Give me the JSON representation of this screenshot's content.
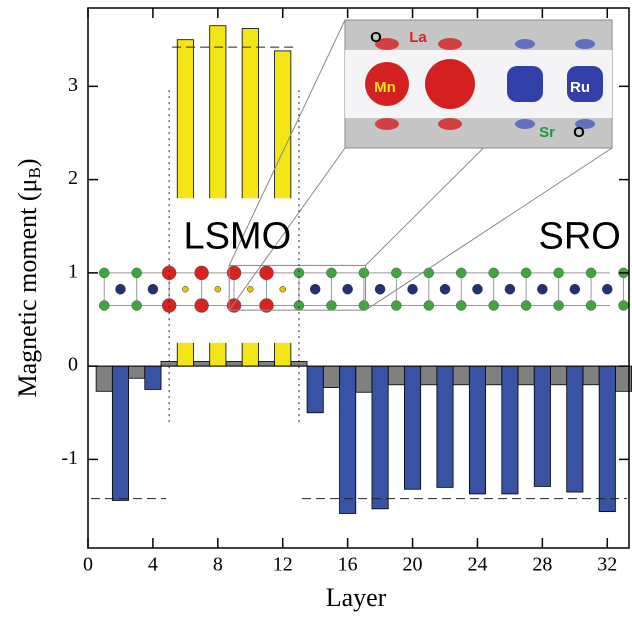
{
  "chart_data": {
    "type": "bar",
    "x_label": "Layer",
    "y_label": {
      "text": "Magnetic moment (μ",
      "sub": "B",
      "end": ")"
    },
    "xlim": [
      0,
      33.4
    ],
    "xticks": [
      0,
      4,
      8,
      12,
      16,
      20,
      24,
      28,
      32
    ],
    "ylim": [
      -1.95,
      3.84
    ],
    "yticks": [
      -1,
      0,
      1,
      2,
      3
    ],
    "series": [
      {
        "color": "#808080",
        "x": [
          1,
          3,
          5,
          7,
          9,
          11,
          13,
          15,
          17,
          19,
          21,
          23,
          25,
          27,
          29,
          31,
          33
        ],
        "values": [
          -0.27,
          -0.13,
          0.05,
          0.05,
          0.05,
          0.05,
          0.05,
          -0.23,
          -0.28,
          -0.2,
          -0.2,
          -0.2,
          -0.2,
          -0.2,
          -0.2,
          -0.2,
          -0.27
        ]
      },
      {
        "color": "#3853a4",
        "x": [
          2,
          4,
          14,
          16,
          18,
          20,
          22,
          24,
          26,
          28,
          30,
          32
        ],
        "values": [
          -1.44,
          -0.25,
          -0.5,
          -1.58,
          -1.53,
          -1.32,
          -1.3,
          -1.37,
          -1.37,
          -1.29,
          -1.35,
          -1.56
        ]
      },
      {
        "color": "#f4e516",
        "x": [
          6,
          8,
          10,
          12
        ],
        "values": [
          3.5,
          3.65,
          3.62,
          3.38
        ]
      }
    ],
    "hlines": [
      {
        "value": 3.42,
        "x": [
          5,
          13
        ]
      },
      {
        "value": -1.42,
        "x": [
          0,
          5
        ]
      },
      {
        "value": -1.42,
        "x": [
          13,
          33.4
        ]
      }
    ],
    "vlines": [
      {
        "value": 5,
        "y": [
          -0.6,
          3
        ]
      },
      {
        "value": 13,
        "y": [
          -0.6,
          3
        ]
      }
    ],
    "annotations": {
      "left": "LSMO",
      "right": "SRO"
    },
    "inset_labels": {
      "o_top": "O",
      "la": "La",
      "mn": "Mn",
      "ru": "Ru",
      "sr": "Sr",
      "o_bottom": "O"
    }
  }
}
